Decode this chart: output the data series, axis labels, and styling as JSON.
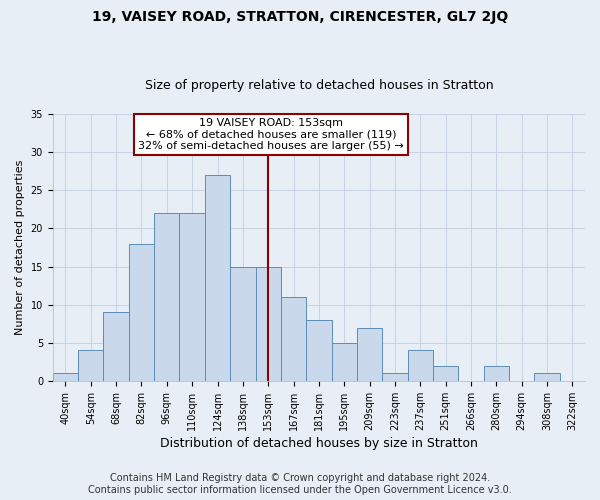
{
  "title": "19, VAISEY ROAD, STRATTON, CIRENCESTER, GL7 2JQ",
  "subtitle": "Size of property relative to detached houses in Stratton",
  "xlabel": "Distribution of detached houses by size in Stratton",
  "ylabel": "Number of detached properties",
  "bin_labels": [
    "40sqm",
    "54sqm",
    "68sqm",
    "82sqm",
    "96sqm",
    "110sqm",
    "124sqm",
    "138sqm",
    "153sqm",
    "167sqm",
    "181sqm",
    "195sqm",
    "209sqm",
    "223sqm",
    "237sqm",
    "251sqm",
    "266sqm",
    "280sqm",
    "294sqm",
    "308sqm",
    "322sqm"
  ],
  "bar_heights": [
    1,
    4,
    9,
    18,
    22,
    22,
    27,
    15,
    15,
    11,
    8,
    5,
    7,
    1,
    4,
    2,
    0,
    2,
    0,
    1,
    0
  ],
  "bar_color": "#c9d9eb",
  "bar_edge_color": "#5b8db8",
  "vline_index": 8,
  "vline_color": "#8b0000",
  "annotation_line1": "19 VAISEY ROAD: 153sqm",
  "annotation_line2": "← 68% of detached houses are smaller (119)",
  "annotation_line3": "32% of semi-detached houses are larger (55) →",
  "annotation_box_color": "#ffffff",
  "annotation_box_edge_color": "#8b0000",
  "grid_color": "#c8d4e3",
  "background_color": "#e8eef5",
  "footer_line1": "Contains HM Land Registry data © Crown copyright and database right 2024.",
  "footer_line2": "Contains public sector information licensed under the Open Government Licence v3.0.",
  "ylim": [
    0,
    35
  ],
  "yticks": [
    0,
    5,
    10,
    15,
    20,
    25,
    30,
    35
  ],
  "title_fontsize": 10,
  "subtitle_fontsize": 9,
  "xlabel_fontsize": 9,
  "ylabel_fontsize": 8,
  "tick_fontsize": 7,
  "annotation_fontsize": 8,
  "footer_fontsize": 7
}
